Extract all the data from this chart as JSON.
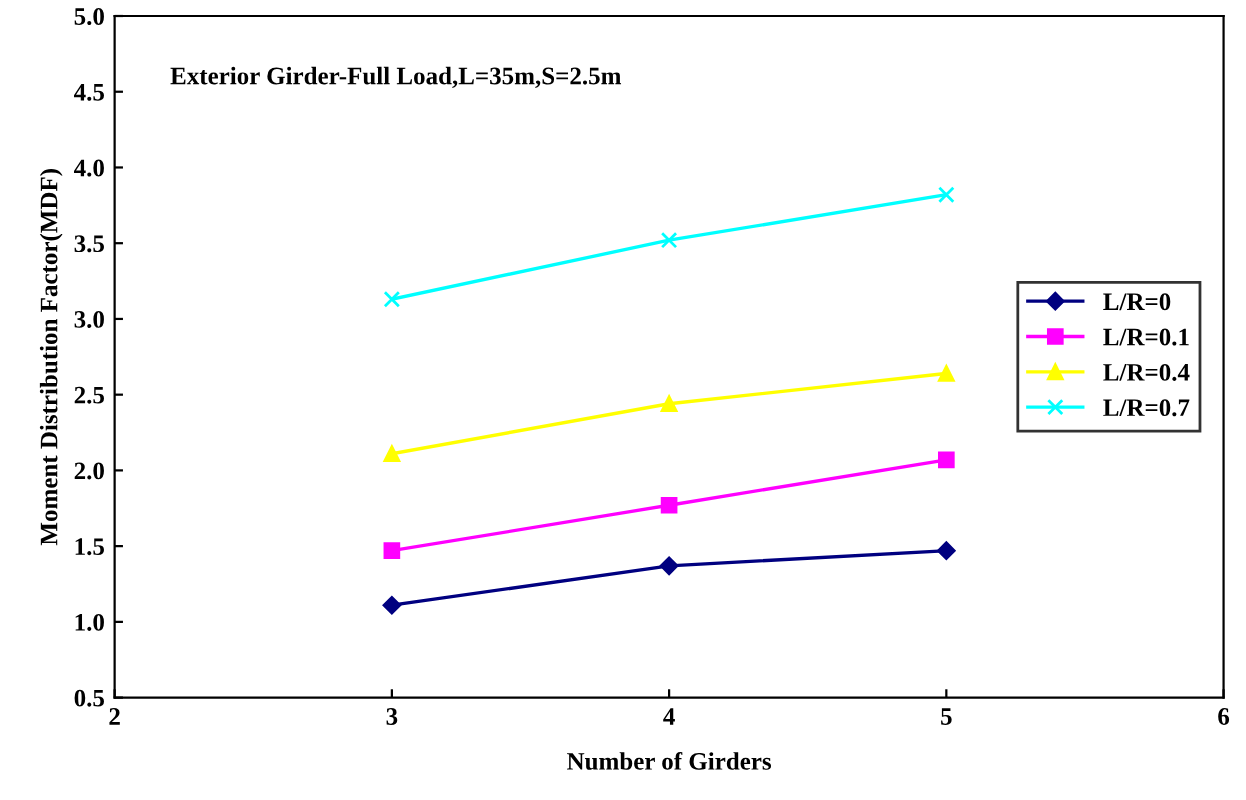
{
  "chart_data": {
    "type": "line",
    "title": "Exterior Girder-Full Load,L=35m,S=2.5m",
    "xlabel": "Number of Girders",
    "ylabel": "Moment Distribution Factor(MDF)",
    "x": [
      3,
      4,
      5
    ],
    "series": [
      {
        "name": "L/R=0",
        "color": "#000080",
        "marker": "diamond",
        "values": [
          1.11,
          1.37,
          1.47
        ]
      },
      {
        "name": "L/R=0.1",
        "color": "#ff00ff",
        "marker": "square",
        "values": [
          1.47,
          1.77,
          2.07
        ]
      },
      {
        "name": "L/R=0.4",
        "color": "#ffff00",
        "marker": "triangle",
        "values": [
          2.11,
          2.44,
          2.64
        ]
      },
      {
        "name": "L/R=0.7",
        "color": "#00ffff",
        "marker": "cross",
        "values": [
          3.13,
          3.52,
          3.82
        ]
      }
    ],
    "xlim": [
      2,
      6
    ],
    "xticks": [
      2,
      3,
      4,
      5,
      6
    ],
    "ylim": [
      0.5,
      5.0
    ],
    "yticks": [
      {
        "value": 0.5,
        "label": "0.5"
      },
      {
        "value": 1.0,
        "label": "1.0"
      },
      {
        "value": 1.5,
        "label": "1.5"
      },
      {
        "value": 2.0,
        "label": "2.0"
      },
      {
        "value": 2.5,
        "label": "2.5"
      },
      {
        "value": 3.0,
        "label": "3.0"
      },
      {
        "value": 3.5,
        "label": "3.5"
      },
      {
        "value": 4.0,
        "label": "4.0"
      },
      {
        "value": 4.5,
        "label": "4.5"
      },
      {
        "value": 5.0,
        "label": "5.0"
      }
    ],
    "grid": false,
    "legend": "right",
    "line_style": "solid"
  }
}
